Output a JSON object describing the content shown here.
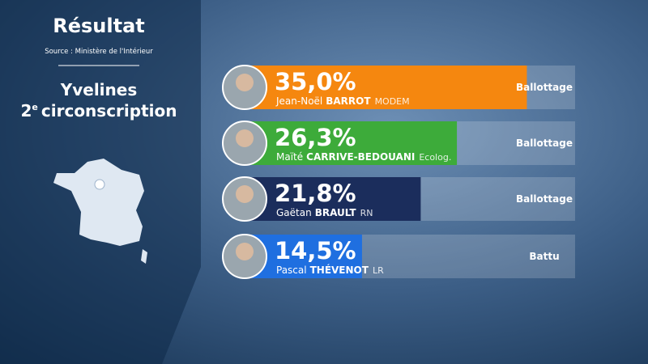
{
  "chart_data": {
    "type": "bar",
    "orientation": "horizontal",
    "title": "Résultat",
    "subtitle": "Source : Ministère de l'Intérieur",
    "region": "Yvelines",
    "district_number": "2",
    "district_suffix": "e",
    "district_label": "circonscription",
    "first_names": [
      "Jean-Noël",
      "Maïté",
      "Gaëtan",
      "Pascal"
    ],
    "last_names": [
      "BARROT",
      "CARRIVE-BEDOUANI",
      "BRAULT",
      "THÉVENOT"
    ],
    "parties": [
      "MODEM",
      "Ecolog.",
      "RN",
      "LR"
    ],
    "statuses": [
      "Ballottage",
      "Ballottage",
      "Ballottage",
      "Battu"
    ],
    "values": [
      35.0,
      26.3,
      21.8,
      14.5
    ],
    "value_labels": [
      "35,0%",
      "26,3%",
      "21,8%",
      "14,5%"
    ],
    "colors": [
      "#f5870f",
      "#3dab3a",
      "#1b2d5c",
      "#1f6fe0"
    ],
    "xlim": [
      0,
      41
    ]
  }
}
